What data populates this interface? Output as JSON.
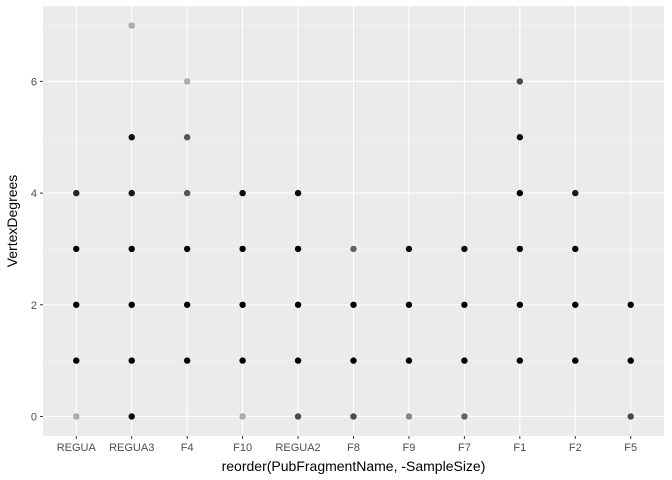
{
  "chart_data": {
    "type": "scatter",
    "xlabel": "reorder(PubFragmentName, -SampleSize)",
    "ylabel": "VertexDegrees",
    "categories": [
      "REGUA",
      "REGUA3",
      "F4",
      "F10",
      "REGUA2",
      "F8",
      "F9",
      "F7",
      "F1",
      "F2",
      "F5"
    ],
    "y_ticks": [
      0,
      2,
      4,
      6
    ],
    "ylim": [
      -0.35,
      7.35
    ],
    "grid": true,
    "points": [
      {
        "x": "REGUA",
        "y": 0,
        "alpha": 0.3
      },
      {
        "x": "REGUA",
        "y": 1,
        "alpha": 1.0
      },
      {
        "x": "REGUA",
        "y": 2,
        "alpha": 1.0
      },
      {
        "x": "REGUA",
        "y": 3,
        "alpha": 1.0
      },
      {
        "x": "REGUA",
        "y": 4,
        "alpha": 0.85
      },
      {
        "x": "REGUA3",
        "y": 0,
        "alpha": 0.95
      },
      {
        "x": "REGUA3",
        "y": 1,
        "alpha": 1.0
      },
      {
        "x": "REGUA3",
        "y": 2,
        "alpha": 1.0
      },
      {
        "x": "REGUA3",
        "y": 3,
        "alpha": 1.0
      },
      {
        "x": "REGUA3",
        "y": 4,
        "alpha": 0.9
      },
      {
        "x": "REGUA3",
        "y": 5,
        "alpha": 0.95
      },
      {
        "x": "REGUA3",
        "y": 7,
        "alpha": 0.3
      },
      {
        "x": "F4",
        "y": 1,
        "alpha": 1.0
      },
      {
        "x": "F4",
        "y": 2,
        "alpha": 1.0
      },
      {
        "x": "F4",
        "y": 3,
        "alpha": 1.0
      },
      {
        "x": "F4",
        "y": 4,
        "alpha": 0.65
      },
      {
        "x": "F4",
        "y": 5,
        "alpha": 0.65
      },
      {
        "x": "F4",
        "y": 6,
        "alpha": 0.3
      },
      {
        "x": "F10",
        "y": 0,
        "alpha": 0.3
      },
      {
        "x": "F10",
        "y": 1,
        "alpha": 1.0
      },
      {
        "x": "F10",
        "y": 2,
        "alpha": 1.0
      },
      {
        "x": "F10",
        "y": 3,
        "alpha": 1.0
      },
      {
        "x": "F10",
        "y": 4,
        "alpha": 0.95
      },
      {
        "x": "REGUA2",
        "y": 0,
        "alpha": 0.7
      },
      {
        "x": "REGUA2",
        "y": 1,
        "alpha": 1.0
      },
      {
        "x": "REGUA2",
        "y": 2,
        "alpha": 1.0
      },
      {
        "x": "REGUA2",
        "y": 3,
        "alpha": 1.0
      },
      {
        "x": "REGUA2",
        "y": 4,
        "alpha": 0.95
      },
      {
        "x": "F8",
        "y": 0,
        "alpha": 0.7
      },
      {
        "x": "F8",
        "y": 1,
        "alpha": 1.0
      },
      {
        "x": "F8",
        "y": 2,
        "alpha": 1.0
      },
      {
        "x": "F8",
        "y": 3,
        "alpha": 0.6
      },
      {
        "x": "F9",
        "y": 0,
        "alpha": 0.45
      },
      {
        "x": "F9",
        "y": 1,
        "alpha": 1.0
      },
      {
        "x": "F9",
        "y": 2,
        "alpha": 1.0
      },
      {
        "x": "F9",
        "y": 3,
        "alpha": 0.95
      },
      {
        "x": "F7",
        "y": 0,
        "alpha": 0.6
      },
      {
        "x": "F7",
        "y": 1,
        "alpha": 1.0
      },
      {
        "x": "F7",
        "y": 2,
        "alpha": 1.0
      },
      {
        "x": "F7",
        "y": 3,
        "alpha": 0.95
      },
      {
        "x": "F1",
        "y": 1,
        "alpha": 1.0
      },
      {
        "x": "F1",
        "y": 2,
        "alpha": 1.0
      },
      {
        "x": "F1",
        "y": 3,
        "alpha": 1.0
      },
      {
        "x": "F1",
        "y": 4,
        "alpha": 1.0
      },
      {
        "x": "F1",
        "y": 5,
        "alpha": 0.95
      },
      {
        "x": "F1",
        "y": 6,
        "alpha": 0.7
      },
      {
        "x": "F2",
        "y": 1,
        "alpha": 1.0
      },
      {
        "x": "F2",
        "y": 2,
        "alpha": 1.0
      },
      {
        "x": "F2",
        "y": 3,
        "alpha": 1.0
      },
      {
        "x": "F2",
        "y": 4,
        "alpha": 0.9
      },
      {
        "x": "F5",
        "y": 0,
        "alpha": 0.7
      },
      {
        "x": "F5",
        "y": 1,
        "alpha": 1.0
      },
      {
        "x": "F5",
        "y": 2,
        "alpha": 1.0
      }
    ],
    "colors": {
      "panel_background": "#ebebeb",
      "grid_major": "#ffffff",
      "grid_minor": "#f5f5f5",
      "point": "#000000",
      "tick_label": "#4d4d4d",
      "tick_mark": "#333333"
    }
  }
}
